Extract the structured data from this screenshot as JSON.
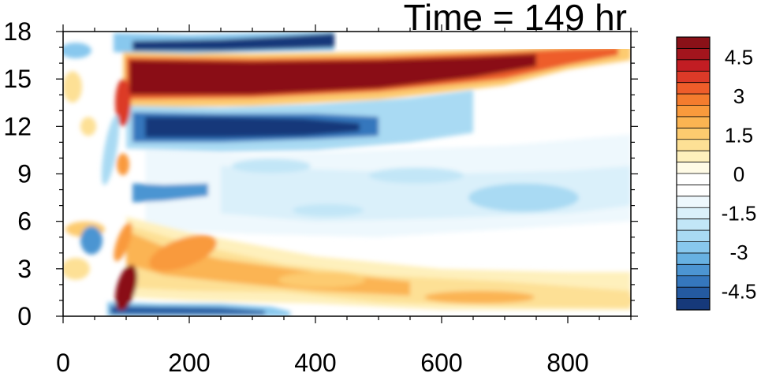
{
  "chart_data": {
    "type": "heatmap",
    "title": "Time = 149 hr",
    "xlabel": "",
    "ylabel": "",
    "xlim": [
      0,
      900
    ],
    "ylim": [
      0,
      18
    ],
    "x_ticks": [
      "0",
      "200",
      "400",
      "600",
      "800"
    ],
    "x_tick_values": [
      0,
      200,
      400,
      600,
      800
    ],
    "y_ticks": [
      "0",
      "3",
      "6",
      "9",
      "12",
      "15",
      "18"
    ],
    "y_tick_values": [
      0,
      3,
      6,
      9,
      12,
      15,
      18
    ],
    "colorbar": {
      "range": [
        -5.25,
        5.25
      ],
      "step": 0.5,
      "labels": [
        "4.5",
        "3",
        "1.5",
        "0",
        "-1.5",
        "-3",
        "-4.5"
      ],
      "label_values": [
        4.5,
        3,
        1.5,
        0,
        -1.5,
        -3,
        -4.5
      ],
      "colors": [
        "#8a1118",
        "#a3151d",
        "#c21d23",
        "#dc3a28",
        "#ee5d2a",
        "#f47c2e",
        "#f99a3c",
        "#fbb452",
        "#fdcb6f",
        "#fde095",
        "#fef0bc",
        "#fffbe6",
        "#ffffff",
        "#ffffff",
        "#eef8fd",
        "#daf0fa",
        "#c2e6f7",
        "#a9daf3",
        "#88c8ee",
        "#67b1e2",
        "#4c95d2",
        "#3577bd",
        "#245aa1",
        "#16397a"
      ]
    },
    "grid": false,
    "features": [
      {
        "name": "upper positive band",
        "x": [
          100,
          900
        ],
        "y": [
          13.5,
          17
        ],
        "value": 5.0
      },
      {
        "name": "negative band below",
        "x": [
          100,
          520
        ],
        "y": [
          10.5,
          13
        ],
        "value": -5.0
      },
      {
        "name": "top negative band",
        "x": [
          80,
          430
        ],
        "y": [
          16.5,
          18
        ],
        "value": -4.5
      },
      {
        "name": "lower positive band",
        "x": [
          80,
          900
        ],
        "y": [
          0.6,
          6
        ],
        "value": 2.0
      },
      {
        "name": "bottom negative strip",
        "x": [
          70,
          330
        ],
        "y": [
          0,
          0.7
        ],
        "value": -4.5
      },
      {
        "name": "interior weak negative",
        "x": [
          150,
          850
        ],
        "y": [
          5,
          11
        ],
        "value": -1.5
      }
    ]
  }
}
